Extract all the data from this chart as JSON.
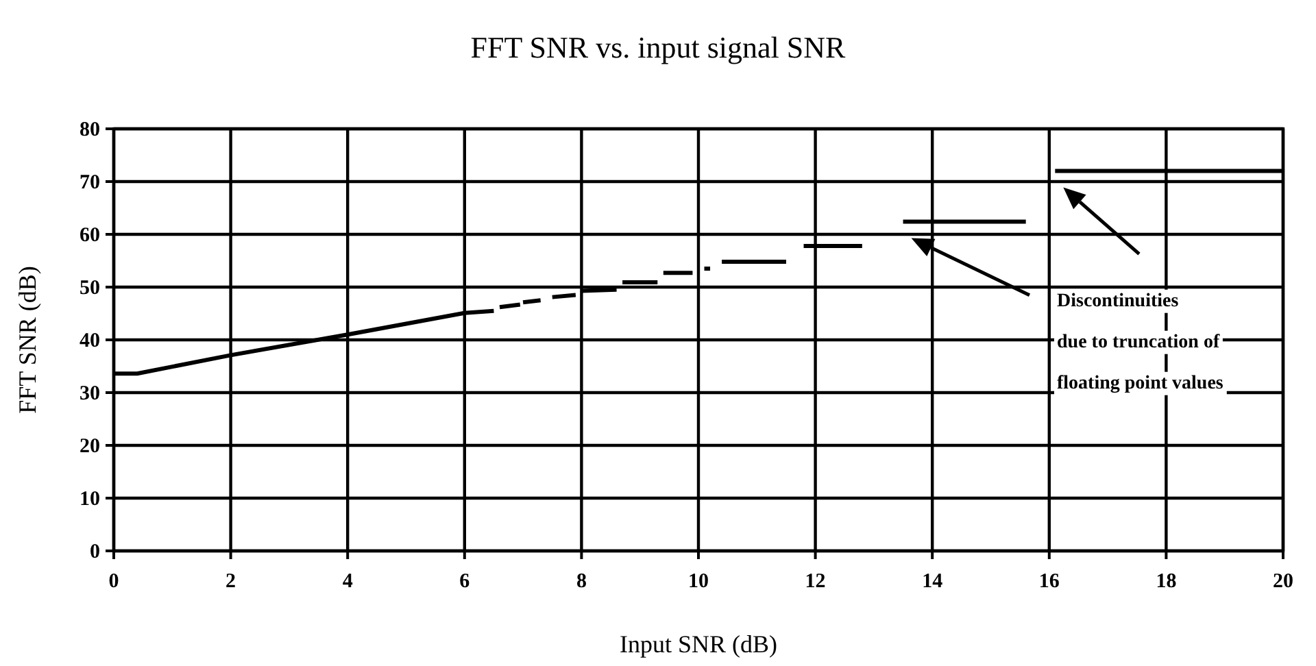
{
  "chart_data": {
    "type": "line",
    "title": "FFT SNR vs. input signal SNR",
    "xlabel": "Input SNR (dB)",
    "ylabel": "FFT SNR (dB)",
    "xlim": [
      0,
      20
    ],
    "xticks": [
      0,
      2,
      4,
      6,
      8,
      10,
      12,
      14,
      16,
      18,
      20
    ],
    "ylim": [
      0,
      80
    ],
    "yticks": [
      0,
      10,
      20,
      30,
      40,
      50,
      60,
      70,
      80
    ],
    "grid": true,
    "marker": "none",
    "line_style": "solid",
    "annotations": [
      "Discontinuities\ndue to truncation of\nfloating point values"
    ],
    "series": [
      {
        "color": "#000000",
        "x": [
          0,
          0.4,
          2,
          4,
          6,
          6.5
        ],
        "values": [
          33.6,
          33.6,
          37.1,
          41.0,
          45.1,
          45.5
        ]
      },
      {
        "color": "#000000",
        "x": [
          6.6,
          6.95
        ],
        "values": [
          46.2,
          46.7
        ]
      },
      {
        "color": "#000000",
        "x": [
          7.0,
          7.3
        ],
        "values": [
          47.1,
          47.5
        ]
      },
      {
        "color": "#000000",
        "x": [
          7.5,
          7.9
        ],
        "values": [
          48.1,
          48.5
        ]
      },
      {
        "color": "#000000",
        "x": [
          8.0,
          8.6
        ],
        "values": [
          49.3,
          49.5
        ]
      },
      {
        "color": "#000000",
        "x": [
          8.7,
          9.3
        ],
        "values": [
          50.9,
          50.9
        ]
      },
      {
        "color": "#000000",
        "x": [
          9.4,
          9.9
        ],
        "values": [
          52.7,
          52.7
        ]
      },
      {
        "color": "#000000",
        "x": [
          10.1,
          10.2
        ],
        "values": [
          53.5,
          53.5
        ]
      },
      {
        "color": "#000000",
        "x": [
          10.4,
          11.5
        ],
        "values": [
          54.8,
          54.8
        ]
      },
      {
        "color": "#000000",
        "x": [
          11.8,
          12.8
        ],
        "values": [
          57.8,
          57.8
        ]
      },
      {
        "color": "#000000",
        "x": [
          13.5,
          15.6
        ],
        "values": [
          62.4,
          62.4
        ]
      },
      {
        "color": "#000000",
        "x": [
          16.1,
          20
        ],
        "values": [
          72,
          72
        ]
      }
    ]
  }
}
